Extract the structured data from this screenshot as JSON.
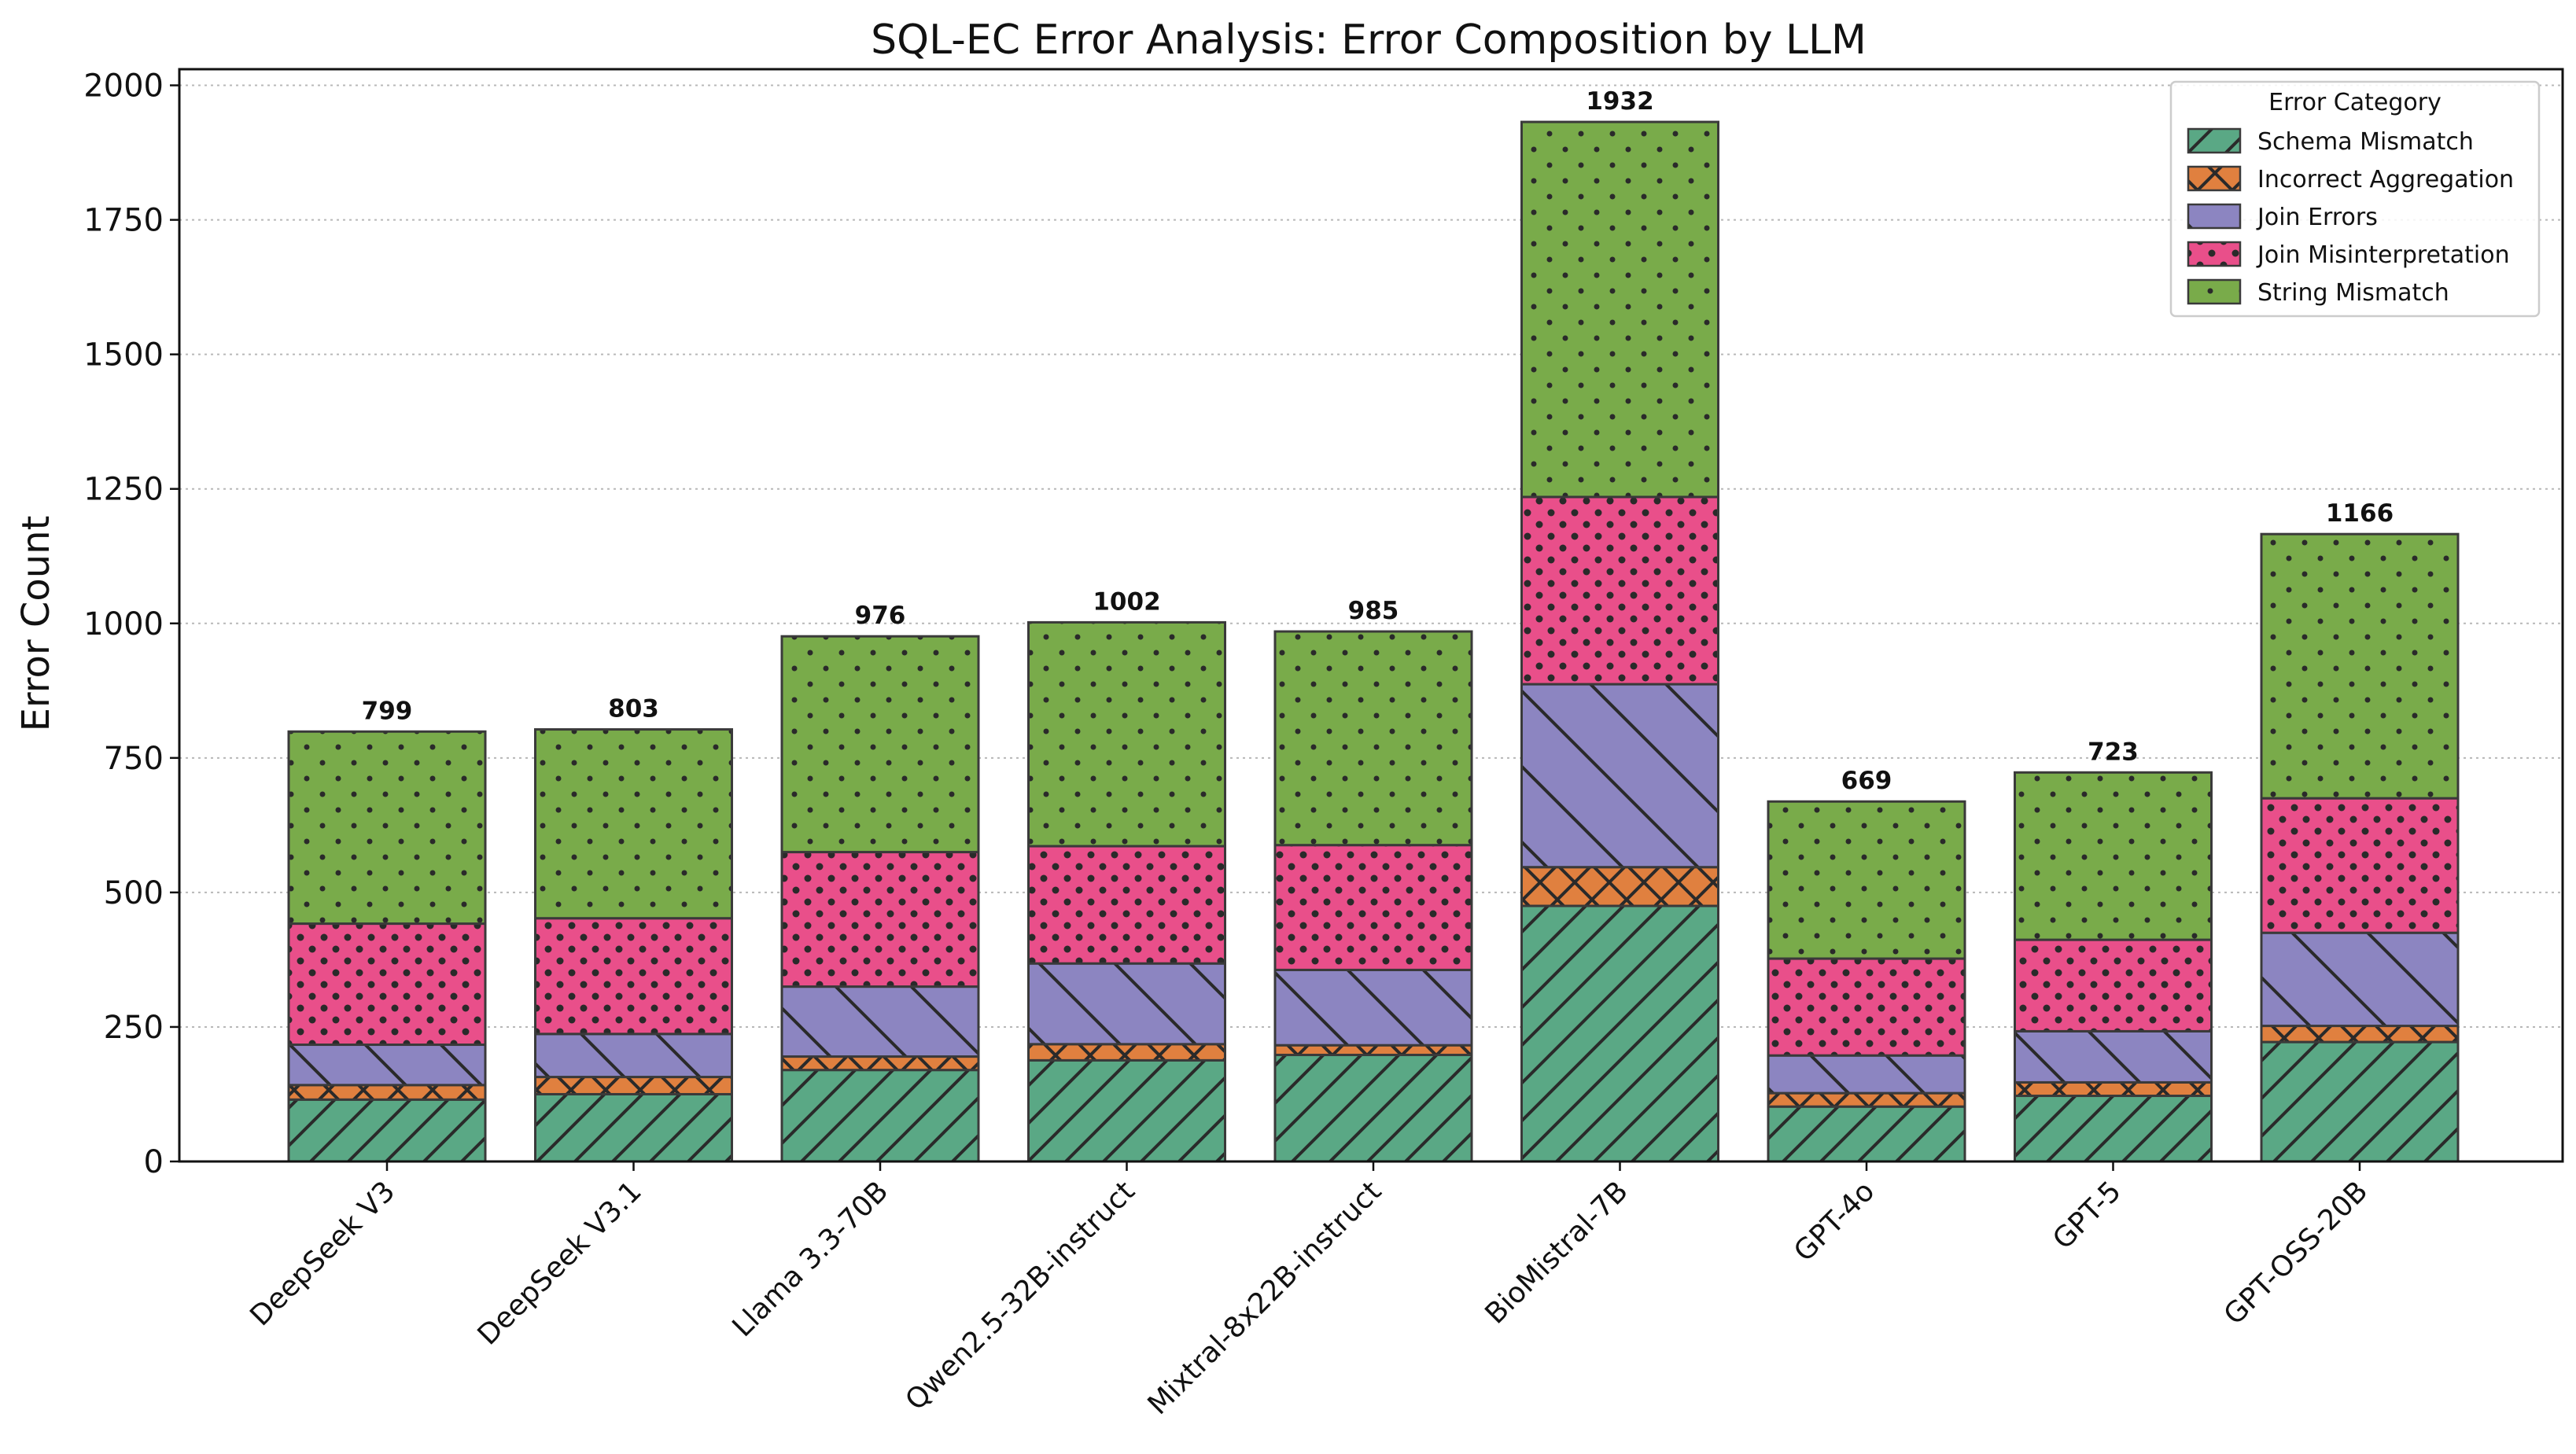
{
  "chart_data": {
    "type": "bar",
    "stacked": true,
    "title": "SQL-EC Error Analysis: Error Composition by LLM",
    "xlabel": "",
    "ylabel": "Error Count",
    "ylim": [
      0,
      2030
    ],
    "yticks": [
      0,
      250,
      500,
      750,
      1000,
      1250,
      1500,
      1750,
      2000
    ],
    "ytick_labels": [
      "0",
      "250",
      "500",
      "750",
      "1000",
      "1250",
      "1500",
      "1750",
      "2000"
    ],
    "grid": "horizontal dotted",
    "legend_position": "top-right",
    "legend_title": "Error Category",
    "categories": [
      "DeepSeek V3",
      "DeepSeek V3.1",
      "Llama 3.3-70B",
      "Qwen2.5-32B-instruct",
      "Mixtral-8x22B-instruct",
      "BioMistral-7B",
      "GPT-4o",
      "GPT-5",
      "GPT-OSS-20B"
    ],
    "series": [
      {
        "name": "Schema Mismatch",
        "color": "#5aa885",
        "hatch": "forward",
        "values": [
          115,
          125,
          170,
          188,
          198,
          475,
          102,
          122,
          222
        ]
      },
      {
        "name": "Incorrect Aggregation",
        "color": "#e0803f",
        "hatch": "cross",
        "values": [
          27,
          32,
          25,
          30,
          18,
          72,
          25,
          25,
          30
        ]
      },
      {
        "name": "Join Errors",
        "color": "#8c85c1",
        "hatch": "back",
        "values": [
          75,
          80,
          130,
          150,
          140,
          340,
          70,
          95,
          173
        ]
      },
      {
        "name": "Join Misinterpretation",
        "color": "#e94f8a",
        "hatch": "dots",
        "values": [
          225,
          215,
          250,
          218,
          232,
          348,
          180,
          170,
          250
        ]
      },
      {
        "name": "String Mismatch",
        "color": "#79ab4a",
        "hatch": "smalldots",
        "values": [
          357,
          351,
          401,
          416,
          397,
          697,
          292,
          311,
          491
        ]
      }
    ],
    "totals": [
      799,
      803,
      976,
      1002,
      985,
      1932,
      669,
      723,
      1166
    ],
    "total_labels": [
      "799",
      "803",
      "976",
      "1002",
      "985",
      "1932",
      "669",
      "723",
      "1166"
    ]
  }
}
